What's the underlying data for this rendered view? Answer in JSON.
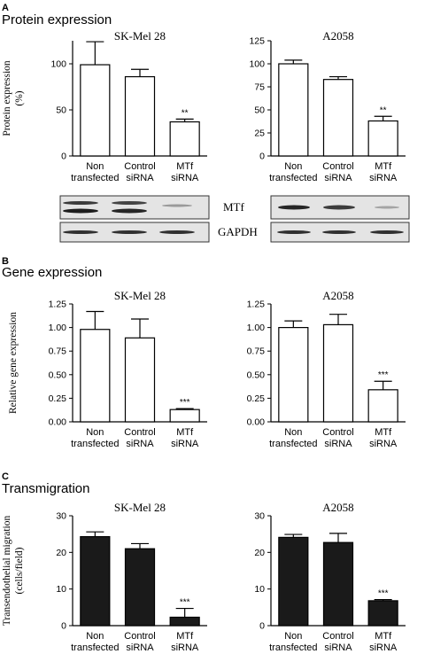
{
  "sections": [
    {
      "letter": "A",
      "title": "Protein expression"
    },
    {
      "letter": "B",
      "title": "Gene expression"
    },
    {
      "letter": "C",
      "title": "Transmigration"
    }
  ],
  "chart_data": [
    {
      "type": "bar",
      "id": "a-left",
      "title": "SK-Mel 28",
      "categories": [
        [
          "Non",
          "transfected"
        ],
        [
          "Control",
          "siRNA"
        ],
        [
          "MTf",
          "siRNA"
        ]
      ],
      "values": [
        99,
        86,
        37
      ],
      "errors": [
        25,
        8,
        3
      ],
      "significance": [
        "",
        "",
        "**"
      ],
      "ylim": [
        0,
        125
      ],
      "yticks": [
        "0",
        "50",
        "100"
      ],
      "ytick_values": [
        0,
        50,
        100
      ],
      "ylabel_lines": [
        "Protein expression",
        "(%)"
      ],
      "bar_color": "#ffffff"
    },
    {
      "type": "bar",
      "id": "a-right",
      "title": "A2058",
      "categories": [
        [
          "Non",
          "transfected"
        ],
        [
          "Control",
          "siRNA"
        ],
        [
          "MTf",
          "siRNA"
        ]
      ],
      "values": [
        100,
        83,
        38
      ],
      "errors": [
        4,
        3,
        5
      ],
      "significance": [
        "",
        "",
        "**"
      ],
      "ylim": [
        0,
        125
      ],
      "yticks": [
        "0",
        "25",
        "50",
        "75",
        "100",
        "125"
      ],
      "ytick_values": [
        0,
        25,
        50,
        75,
        100,
        125
      ],
      "ylabel_lines": [],
      "bar_color": "#ffffff"
    },
    {
      "type": "bar",
      "id": "b-left",
      "title": "SK-Mel 28",
      "categories": [
        [
          "Non",
          "transfected"
        ],
        [
          "Control",
          "siRNA"
        ],
        [
          "MTf",
          "siRNA"
        ]
      ],
      "values": [
        0.98,
        0.89,
        0.13
      ],
      "errors": [
        0.19,
        0.2,
        0.01
      ],
      "significance": [
        "",
        "",
        "***"
      ],
      "ylim": [
        0,
        1.25
      ],
      "yticks": [
        "0.00",
        "0.25",
        "0.50",
        "0.75",
        "1.00",
        "1.25"
      ],
      "ytick_values": [
        0,
        0.25,
        0.5,
        0.75,
        1.0,
        1.25
      ],
      "ylabel_lines": [
        "Relative gene expression"
      ],
      "bar_color": "#ffffff"
    },
    {
      "type": "bar",
      "id": "b-right",
      "title": "A2058",
      "categories": [
        [
          "Non",
          "transfected"
        ],
        [
          "Control",
          "siRNA"
        ],
        [
          "MTf",
          "siRNA"
        ]
      ],
      "values": [
        1.0,
        1.03,
        0.34
      ],
      "errors": [
        0.07,
        0.11,
        0.09
      ],
      "significance": [
        "",
        "",
        "***"
      ],
      "ylim": [
        0,
        1.25
      ],
      "yticks": [
        "0.00",
        "0.25",
        "0.50",
        "0.75",
        "1.00",
        "1.25"
      ],
      "ytick_values": [
        0,
        0.25,
        0.5,
        0.75,
        1.0,
        1.25
      ],
      "ylabel_lines": [],
      "bar_color": "#ffffff"
    },
    {
      "type": "bar",
      "id": "c-left",
      "title": "SK-Mel 28",
      "categories": [
        [
          "Non",
          "transfected"
        ],
        [
          "Control",
          "siRNA"
        ],
        [
          "MTf",
          "siRNA"
        ]
      ],
      "values": [
        24.3,
        21,
        2.3
      ],
      "errors": [
        1.3,
        1.4,
        2.4
      ],
      "significance": [
        "",
        "",
        "***"
      ],
      "ylim": [
        0,
        30
      ],
      "yticks": [
        "0",
        "10",
        "20",
        "30"
      ],
      "ytick_values": [
        0,
        10,
        20,
        30
      ],
      "ylabel_lines": [
        "Transendothelial migration",
        "(cells/field)"
      ],
      "bar_color": "#1a1a1a"
    },
    {
      "type": "bar",
      "id": "c-right",
      "title": "A2058",
      "categories": [
        [
          "Non",
          "transfected"
        ],
        [
          "Control",
          "siRNA"
        ],
        [
          "MTf",
          "siRNA"
        ]
      ],
      "values": [
        24.1,
        22.7,
        6.8
      ],
      "errors": [
        0.8,
        2.5,
        0.3
      ],
      "significance": [
        "",
        "",
        "***"
      ],
      "ylim": [
        0,
        30
      ],
      "yticks": [
        "0",
        "10",
        "20",
        "30"
      ],
      "ytick_values": [
        0,
        10,
        20,
        30
      ],
      "ylabel_lines": [],
      "bar_color": "#1a1a1a"
    }
  ],
  "blots": {
    "row_labels": [
      "MTf",
      "GAPDH"
    ],
    "mtf_band_intensity_left": [
      0.95,
      0.9,
      0.35
    ],
    "mtf_band_intensity_right": [
      0.9,
      0.8,
      0.3
    ],
    "gapdh_band_intensity": [
      0.85,
      0.85,
      0.85
    ]
  }
}
